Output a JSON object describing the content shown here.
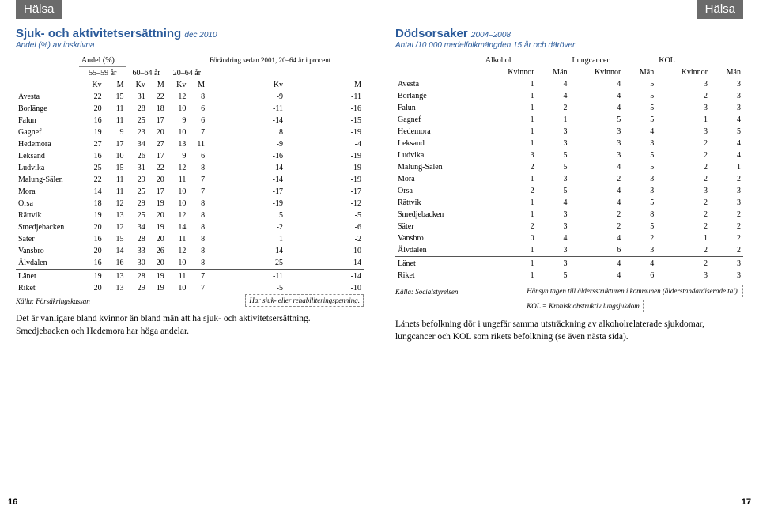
{
  "tab_label": "Hälsa",
  "left": {
    "title": "Sjuk- och aktivitetsersättning",
    "title_small": "dec 2010",
    "subtitle": "Andel (%) av inskrivna",
    "header_top": {
      "andel": "Andel (%)",
      "col55": "55–59 år",
      "col60": "60–64 år",
      "col20": "20–64 år",
      "change": "Förändring sedan 2001, 20–64 år i procent"
    },
    "kv": "Kv",
    "m": "M",
    "rows": [
      {
        "n": "Avesta",
        "v": [
          22,
          15,
          31,
          22,
          12,
          8,
          -9,
          -11
        ]
      },
      {
        "n": "Borlänge",
        "v": [
          20,
          11,
          28,
          18,
          10,
          6,
          -11,
          -16
        ]
      },
      {
        "n": "Falun",
        "v": [
          16,
          11,
          25,
          17,
          9,
          6,
          -14,
          -15
        ]
      },
      {
        "n": "Gagnef",
        "v": [
          19,
          9,
          23,
          20,
          10,
          7,
          8,
          -19
        ]
      },
      {
        "n": "Hedemora",
        "v": [
          27,
          17,
          34,
          27,
          13,
          11,
          -9,
          -4
        ]
      },
      {
        "n": "Leksand",
        "v": [
          16,
          10,
          26,
          17,
          9,
          6,
          -16,
          -19
        ]
      },
      {
        "n": "Ludvika",
        "v": [
          25,
          15,
          31,
          22,
          12,
          8,
          -14,
          -19
        ]
      },
      {
        "n": "Malung-Sälen",
        "v": [
          22,
          11,
          29,
          20,
          11,
          7,
          -14,
          -19
        ]
      },
      {
        "n": "Mora",
        "v": [
          14,
          11,
          25,
          17,
          10,
          7,
          -17,
          -17
        ]
      },
      {
        "n": "Orsa",
        "v": [
          18,
          12,
          29,
          19,
          10,
          8,
          -19,
          -12
        ]
      },
      {
        "n": "Rättvik",
        "v": [
          19,
          13,
          25,
          20,
          12,
          8,
          5,
          -5
        ]
      },
      {
        "n": "Smedjebacken",
        "v": [
          20,
          12,
          34,
          19,
          14,
          8,
          -2,
          -6
        ]
      },
      {
        "n": "Säter",
        "v": [
          16,
          15,
          28,
          20,
          11,
          8,
          1,
          -2
        ]
      },
      {
        "n": "Vansbro",
        "v": [
          20,
          14,
          33,
          26,
          12,
          8,
          -14,
          -10
        ]
      },
      {
        "n": "Älvdalen",
        "v": [
          16,
          16,
          30,
          20,
          10,
          8,
          -25,
          -14
        ]
      }
    ],
    "totals": [
      {
        "n": "Länet",
        "v": [
          19,
          13,
          28,
          19,
          11,
          7,
          -11,
          -14
        ]
      },
      {
        "n": "Riket",
        "v": [
          20,
          13,
          29,
          19,
          10,
          7,
          -5,
          -10
        ]
      }
    ],
    "source": "Källa: Försäkringskassan",
    "note_box": "Har sjuk- eller rehabiliteringspenning.",
    "body": "Det är vanligare bland kvinnor än bland män att ha sjuk- och aktivitetsersättning. Smedjebacken och Hedemora har höga andelar.",
    "pagenum": "16"
  },
  "right": {
    "title": "Dödsorsaker",
    "title_small": "2004–2008",
    "subtitle": "Antal /10 000 medelfolkmängden 15 år och däröver",
    "group_headers": [
      "Alkohol",
      "Lungcancer",
      "KOL"
    ],
    "sub_headers": [
      "Kvinnor",
      "Män",
      "Kvinnor",
      "Män",
      "Kvinnor",
      "Män"
    ],
    "rows": [
      {
        "n": "Avesta",
        "v": [
          1,
          4,
          4,
          5,
          3,
          3
        ]
      },
      {
        "n": "Borlänge",
        "v": [
          1,
          4,
          4,
          5,
          2,
          3
        ]
      },
      {
        "n": "Falun",
        "v": [
          1,
          2,
          4,
          5,
          3,
          3
        ]
      },
      {
        "n": "Gagnef",
        "v": [
          1,
          1,
          5,
          5,
          1,
          4
        ]
      },
      {
        "n": "Hedemora",
        "v": [
          1,
          3,
          3,
          4,
          3,
          5
        ]
      },
      {
        "n": "Leksand",
        "v": [
          1,
          3,
          3,
          3,
          2,
          4
        ]
      },
      {
        "n": "Ludvika",
        "v": [
          3,
          5,
          3,
          5,
          2,
          4
        ]
      },
      {
        "n": "Malung-Sälen",
        "v": [
          2,
          5,
          4,
          5,
          2,
          1
        ]
      },
      {
        "n": "Mora",
        "v": [
          1,
          3,
          2,
          3,
          2,
          2
        ]
      },
      {
        "n": "Orsa",
        "v": [
          2,
          5,
          4,
          3,
          3,
          3
        ]
      },
      {
        "n": "Rättvik",
        "v": [
          1,
          4,
          4,
          5,
          2,
          3
        ]
      },
      {
        "n": "Smedjebacken",
        "v": [
          1,
          3,
          2,
          8,
          2,
          2
        ]
      },
      {
        "n": "Säter",
        "v": [
          2,
          3,
          2,
          5,
          2,
          2
        ]
      },
      {
        "n": "Vansbro",
        "v": [
          0,
          4,
          4,
          2,
          1,
          2
        ]
      },
      {
        "n": "Älvdalen",
        "v": [
          1,
          3,
          6,
          3,
          2,
          2
        ]
      }
    ],
    "totals": [
      {
        "n": "Länet",
        "v": [
          1,
          3,
          4,
          4,
          2,
          3
        ]
      },
      {
        "n": "Riket",
        "v": [
          1,
          5,
          4,
          6,
          3,
          3
        ]
      }
    ],
    "source": "Källa: Socialstyrelsen",
    "note1": "Hänsyn tagen till åldersstrukturen i kommunen (ålderstandardiserade tal).",
    "note2": "KOL = Kronisk obstruktiv lungsjukdom",
    "body": "Länets befolkning dör i ungefär samma utsträckning av alkoholrelaterade sjukdomar, lungcancer och KOL som rikets befolkning (se även nästa sida).",
    "pagenum": "17"
  }
}
